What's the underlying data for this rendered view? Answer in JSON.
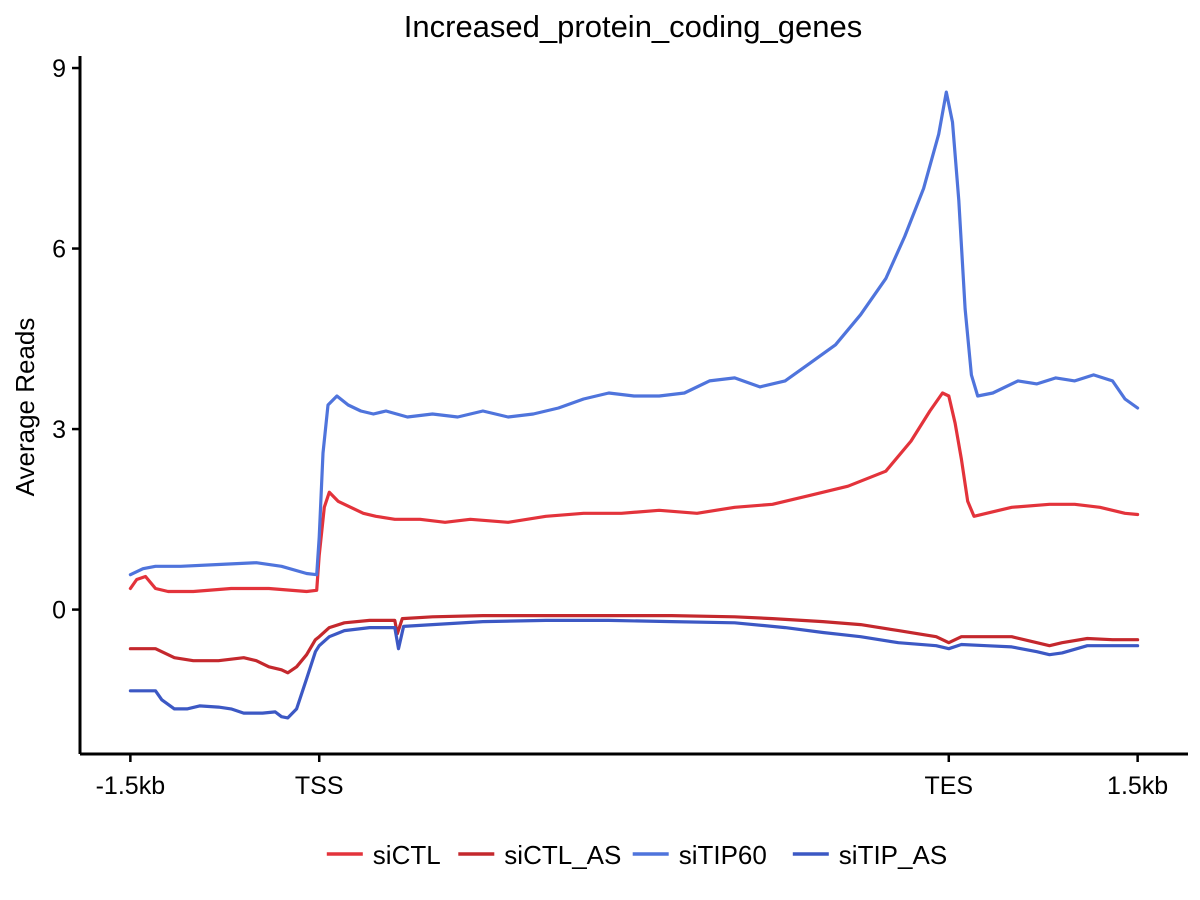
{
  "chart_data": {
    "type": "line",
    "title": "Increased_protein_coding_genes",
    "xlabel": "",
    "ylabel": "Average Reads",
    "x_ticks": [
      {
        "pos": -1500,
        "label": "-1.5kb"
      },
      {
        "pos": 0,
        "label": "TSS"
      },
      {
        "pos": 5000,
        "label": "TES"
      },
      {
        "pos": 6500,
        "label": "1.5kb"
      }
    ],
    "y_ticks": [
      0,
      3,
      6,
      9
    ],
    "xlim": [
      -1900,
      6900
    ],
    "ylim": [
      -2.4,
      9.2
    ],
    "grid": false,
    "legend_position": "bottom",
    "series": [
      {
        "name": "siCTL",
        "color": "#e3333b",
        "points": [
          [
            -1500,
            0.35
          ],
          [
            -1450,
            0.5
          ],
          [
            -1380,
            0.55
          ],
          [
            -1300,
            0.35
          ],
          [
            -1200,
            0.3
          ],
          [
            -1000,
            0.3
          ],
          [
            -700,
            0.35
          ],
          [
            -400,
            0.35
          ],
          [
            -100,
            0.3
          ],
          [
            -20,
            0.32
          ],
          [
            0,
            0.9
          ],
          [
            40,
            1.7
          ],
          [
            80,
            1.95
          ],
          [
            150,
            1.8
          ],
          [
            250,
            1.7
          ],
          [
            350,
            1.6
          ],
          [
            450,
            1.55
          ],
          [
            600,
            1.5
          ],
          [
            800,
            1.5
          ],
          [
            1000,
            1.45
          ],
          [
            1200,
            1.5
          ],
          [
            1500,
            1.45
          ],
          [
            1800,
            1.55
          ],
          [
            2100,
            1.6
          ],
          [
            2400,
            1.6
          ],
          [
            2700,
            1.65
          ],
          [
            3000,
            1.6
          ],
          [
            3300,
            1.7
          ],
          [
            3600,
            1.75
          ],
          [
            3900,
            1.9
          ],
          [
            4200,
            2.05
          ],
          [
            4500,
            2.3
          ],
          [
            4700,
            2.8
          ],
          [
            4850,
            3.3
          ],
          [
            4950,
            3.6
          ],
          [
            5000,
            3.55
          ],
          [
            5050,
            3.1
          ],
          [
            5100,
            2.5
          ],
          [
            5150,
            1.8
          ],
          [
            5200,
            1.55
          ],
          [
            5300,
            1.6
          ],
          [
            5500,
            1.7
          ],
          [
            5800,
            1.75
          ],
          [
            6000,
            1.75
          ],
          [
            6200,
            1.7
          ],
          [
            6400,
            1.6
          ],
          [
            6500,
            1.58
          ]
        ]
      },
      {
        "name": "siCTL_AS",
        "color": "#c4282d",
        "points": [
          [
            -1500,
            -0.65
          ],
          [
            -1300,
            -0.65
          ],
          [
            -1150,
            -0.8
          ],
          [
            -1000,
            -0.85
          ],
          [
            -800,
            -0.85
          ],
          [
            -600,
            -0.8
          ],
          [
            -500,
            -0.85
          ],
          [
            -400,
            -0.95
          ],
          [
            -300,
            -1.0
          ],
          [
            -250,
            -1.05
          ],
          [
            -180,
            -0.95
          ],
          [
            -100,
            -0.75
          ],
          [
            -30,
            -0.5
          ],
          [
            0,
            -0.45
          ],
          [
            80,
            -0.3
          ],
          [
            200,
            -0.22
          ],
          [
            400,
            -0.18
          ],
          [
            600,
            -0.18
          ],
          [
            620,
            -0.4
          ],
          [
            660,
            -0.15
          ],
          [
            900,
            -0.12
          ],
          [
            1300,
            -0.1
          ],
          [
            1800,
            -0.1
          ],
          [
            2300,
            -0.1
          ],
          [
            2800,
            -0.1
          ],
          [
            3300,
            -0.12
          ],
          [
            3600,
            -0.15
          ],
          [
            4000,
            -0.2
          ],
          [
            4300,
            -0.25
          ],
          [
            4600,
            -0.35
          ],
          [
            4900,
            -0.45
          ],
          [
            5000,
            -0.55
          ],
          [
            5100,
            -0.45
          ],
          [
            5300,
            -0.45
          ],
          [
            5500,
            -0.45
          ],
          [
            5700,
            -0.55
          ],
          [
            5800,
            -0.6
          ],
          [
            5900,
            -0.55
          ],
          [
            6100,
            -0.48
          ],
          [
            6300,
            -0.5
          ],
          [
            6500,
            -0.5
          ]
        ]
      },
      {
        "name": "siTIP60",
        "color": "#4f74dc",
        "points": [
          [
            -1500,
            0.58
          ],
          [
            -1400,
            0.68
          ],
          [
            -1300,
            0.72
          ],
          [
            -1100,
            0.72
          ],
          [
            -800,
            0.75
          ],
          [
            -500,
            0.78
          ],
          [
            -300,
            0.72
          ],
          [
            -100,
            0.6
          ],
          [
            -20,
            0.58
          ],
          [
            0,
            1.2
          ],
          [
            30,
            2.6
          ],
          [
            70,
            3.4
          ],
          [
            140,
            3.55
          ],
          [
            230,
            3.4
          ],
          [
            330,
            3.3
          ],
          [
            430,
            3.25
          ],
          [
            530,
            3.3
          ],
          [
            700,
            3.2
          ],
          [
            900,
            3.25
          ],
          [
            1100,
            3.2
          ],
          [
            1300,
            3.3
          ],
          [
            1500,
            3.2
          ],
          [
            1700,
            3.25
          ],
          [
            1900,
            3.35
          ],
          [
            2100,
            3.5
          ],
          [
            2300,
            3.6
          ],
          [
            2500,
            3.55
          ],
          [
            2700,
            3.55
          ],
          [
            2900,
            3.6
          ],
          [
            3100,
            3.8
          ],
          [
            3300,
            3.85
          ],
          [
            3500,
            3.7
          ],
          [
            3700,
            3.8
          ],
          [
            3900,
            4.1
          ],
          [
            4100,
            4.4
          ],
          [
            4300,
            4.9
          ],
          [
            4500,
            5.5
          ],
          [
            4650,
            6.2
          ],
          [
            4800,
            7.0
          ],
          [
            4920,
            7.9
          ],
          [
            4980,
            8.6
          ],
          [
            5030,
            8.1
          ],
          [
            5080,
            6.8
          ],
          [
            5130,
            5.0
          ],
          [
            5180,
            3.9
          ],
          [
            5230,
            3.55
          ],
          [
            5350,
            3.6
          ],
          [
            5550,
            3.8
          ],
          [
            5700,
            3.75
          ],
          [
            5850,
            3.85
          ],
          [
            6000,
            3.8
          ],
          [
            6150,
            3.9
          ],
          [
            6300,
            3.8
          ],
          [
            6400,
            3.5
          ],
          [
            6500,
            3.35
          ]
        ]
      },
      {
        "name": "siTIP_AS",
        "color": "#3c58c4",
        "points": [
          [
            -1500,
            -1.35
          ],
          [
            -1400,
            -1.35
          ],
          [
            -1300,
            -1.35
          ],
          [
            -1250,
            -1.5
          ],
          [
            -1150,
            -1.65
          ],
          [
            -1050,
            -1.65
          ],
          [
            -950,
            -1.6
          ],
          [
            -800,
            -1.62
          ],
          [
            -700,
            -1.65
          ],
          [
            -600,
            -1.72
          ],
          [
            -450,
            -1.72
          ],
          [
            -350,
            -1.7
          ],
          [
            -300,
            -1.78
          ],
          [
            -250,
            -1.8
          ],
          [
            -180,
            -1.65
          ],
          [
            -100,
            -1.15
          ],
          [
            -30,
            -0.7
          ],
          [
            0,
            -0.6
          ],
          [
            80,
            -0.45
          ],
          [
            200,
            -0.35
          ],
          [
            400,
            -0.3
          ],
          [
            600,
            -0.3
          ],
          [
            630,
            -0.65
          ],
          [
            670,
            -0.28
          ],
          [
            900,
            -0.25
          ],
          [
            1300,
            -0.2
          ],
          [
            1800,
            -0.18
          ],
          [
            2300,
            -0.18
          ],
          [
            2800,
            -0.2
          ],
          [
            3300,
            -0.22
          ],
          [
            3700,
            -0.3
          ],
          [
            4000,
            -0.38
          ],
          [
            4300,
            -0.45
          ],
          [
            4600,
            -0.55
          ],
          [
            4900,
            -0.6
          ],
          [
            5000,
            -0.65
          ],
          [
            5100,
            -0.58
          ],
          [
            5300,
            -0.6
          ],
          [
            5500,
            -0.62
          ],
          [
            5700,
            -0.7
          ],
          [
            5800,
            -0.75
          ],
          [
            5900,
            -0.72
          ],
          [
            6100,
            -0.6
          ],
          [
            6300,
            -0.6
          ],
          [
            6500,
            -0.6
          ]
        ]
      }
    ]
  }
}
